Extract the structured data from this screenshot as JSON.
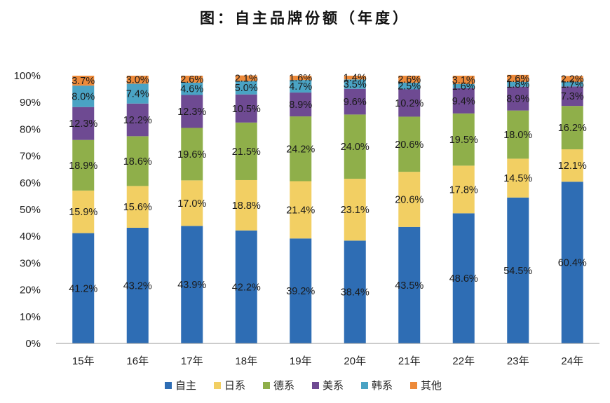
{
  "chart_data": {
    "type": "bar",
    "stacked": true,
    "title": "图：自主品牌份额（年度）",
    "categories": [
      "15年",
      "16年",
      "17年",
      "18年",
      "19年",
      "20年",
      "21年",
      "22年",
      "23年",
      "24年"
    ],
    "series": [
      {
        "name": "自主",
        "color": "#2e6db4",
        "values": [
          41.2,
          43.2,
          43.9,
          42.2,
          39.2,
          38.4,
          43.5,
          48.6,
          54.5,
          60.4
        ]
      },
      {
        "name": "日系",
        "color": "#f2cf63",
        "values": [
          15.9,
          15.6,
          17.0,
          18.8,
          21.4,
          23.1,
          20.6,
          17.8,
          14.5,
          12.1
        ]
      },
      {
        "name": "德系",
        "color": "#8faf4a",
        "values": [
          18.9,
          18.6,
          19.6,
          21.5,
          24.2,
          24.0,
          20.6,
          19.5,
          18.0,
          16.2
        ]
      },
      {
        "name": "美系",
        "color": "#6e4a92",
        "values": [
          12.3,
          12.2,
          12.3,
          10.5,
          8.9,
          9.6,
          10.2,
          9.4,
          8.9,
          7.3
        ]
      },
      {
        "name": "韩系",
        "color": "#4aa3c4",
        "values": [
          8.0,
          7.4,
          4.6,
          5.0,
          4.7,
          3.5,
          2.5,
          1.6,
          1.8,
          1.7
        ]
      },
      {
        "name": "其他",
        "color": "#ed8a3a",
        "values": [
          3.7,
          3.0,
          2.6,
          2.1,
          1.6,
          1.4,
          2.6,
          3.1,
          2.6,
          2.2
        ]
      }
    ],
    "yticks": [
      "0%",
      "10%",
      "20%",
      "30%",
      "40%",
      "50%",
      "60%",
      "70%",
      "80%",
      "90%",
      "100%"
    ],
    "ylim": [
      0,
      100
    ],
    "legend_position": "bottom",
    "grid": false
  }
}
